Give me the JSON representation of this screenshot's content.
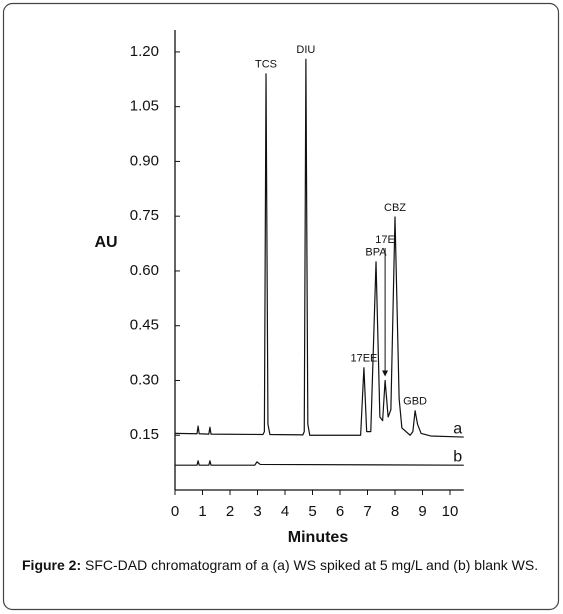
{
  "chart_data": {
    "type": "line",
    "xlabel": "Minutes",
    "ylabel": "AU",
    "xlim": [
      0,
      10.5
    ],
    "ylim": [
      0,
      1.26
    ],
    "xticks": [
      0,
      1,
      2,
      3,
      4,
      5,
      6,
      7,
      8,
      9,
      10
    ],
    "yticks": [
      0.15,
      {
        "value": 0.3,
        "label": "0.30"
      },
      0.45,
      {
        "value": 0.6,
        "label": "0.60"
      },
      0.75,
      {
        "value": 0.9,
        "label": "0.90"
      },
      1.05,
      {
        "value": 1.2,
        "label": "1.20"
      }
    ],
    "series": [
      {
        "name": "a",
        "color": "#111111",
        "x": [
          0,
          0.8,
          0.84,
          0.88,
          1.23,
          1.27,
          1.31,
          3.2,
          3.25,
          3.31,
          3.38,
          3.45,
          4.65,
          4.7,
          4.76,
          4.83,
          4.9,
          6.75,
          6.87,
          6.97,
          7.12,
          7.31,
          7.45,
          7.55,
          7.64,
          7.75,
          7.85,
          8.0,
          8.15,
          8.25,
          8.55,
          8.65,
          8.73,
          8.82,
          8.95,
          9.3,
          10.5
        ],
        "values": [
          0.155,
          0.154,
          0.175,
          0.154,
          0.153,
          0.172,
          0.153,
          0.152,
          0.16,
          1.14,
          0.18,
          0.152,
          0.151,
          0.16,
          1.18,
          0.18,
          0.15,
          0.15,
          0.335,
          0.16,
          0.16,
          0.625,
          0.2,
          0.19,
          0.3,
          0.2,
          0.22,
          0.748,
          0.25,
          0.17,
          0.15,
          0.16,
          0.217,
          0.18,
          0.155,
          0.148,
          0.145
        ]
      },
      {
        "name": "b",
        "color": "#111111",
        "x": [
          0,
          0.8,
          0.84,
          0.88,
          1.23,
          1.27,
          1.31,
          2.9,
          2.98,
          3.1,
          10.5
        ],
        "values": [
          0.068,
          0.068,
          0.08,
          0.068,
          0.068,
          0.08,
          0.068,
          0.068,
          0.077,
          0.07,
          0.068
        ]
      }
    ],
    "annotations": [
      {
        "text": "TCS",
        "x": 3.31,
        "y": 1.14
      },
      {
        "text": "DIU",
        "x": 4.76,
        "y": 1.18
      },
      {
        "text": "17EE",
        "x": 6.87,
        "y": 0.335
      },
      {
        "text": "BPA",
        "x": 7.31,
        "y": 0.625
      },
      {
        "text": "17E",
        "x": 7.64,
        "y": 0.66,
        "arrow": true
      },
      {
        "text": "CBZ",
        "x": 8.0,
        "y": 0.748
      },
      {
        "text": "GBD",
        "x": 8.73,
        "y": 0.217
      }
    ]
  },
  "caption": {
    "label": "Figure 2:",
    "text": "SFC-DAD chromatogram of a (a) WS spiked at 5 mg/L and (b) blank WS."
  }
}
